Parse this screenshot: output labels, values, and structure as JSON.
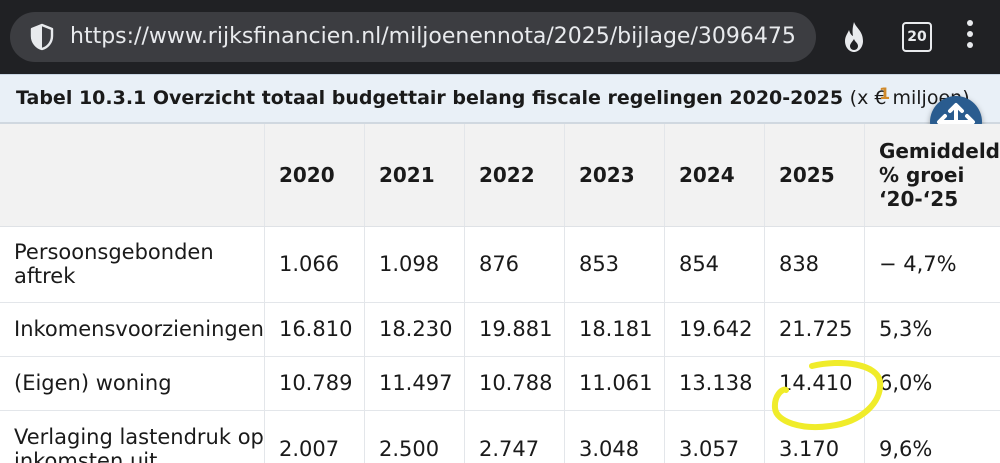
{
  "browser": {
    "url": "https://www.rijksfinancien.nl/miljoenennota/2025/bijlage/3096475",
    "tab_count": "20",
    "icons": [
      "shield-icon",
      "fire-icon",
      "more-vert-icon"
    ]
  },
  "table": {
    "caption": "Tabel 10.3.1 Overzicht totaal budgettair belang fiscale regelingen 2020-2025",
    "caption_unit": "(x € miljoen)",
    "footnote": "1",
    "columns": [
      "2020",
      "2021",
      "2022",
      "2023",
      "2024",
      "2025"
    ],
    "growth_header": [
      "Gemiddeld",
      "% groei",
      "‘20-‘25"
    ],
    "rows": [
      {
        "label": [
          "Persoonsgebonden",
          "aftrek"
        ],
        "values": [
          "1.066",
          "1.098",
          "876",
          "853",
          "854",
          "838"
        ],
        "growth": "− 4,7%"
      },
      {
        "label": [
          "Inkomensvoorzieningen"
        ],
        "values": [
          "16.810",
          "18.230",
          "19.881",
          "18.181",
          "19.642",
          "21.725"
        ],
        "growth": "5,3%"
      },
      {
        "label": [
          "(Eigen) woning"
        ],
        "values": [
          "10.789",
          "11.497",
          "10.788",
          "11.061",
          "13.138",
          "14.410"
        ],
        "growth": "6,0%"
      },
      {
        "label": [
          "Verlaging lastendruk op",
          "inkomsten uit"
        ],
        "values": [
          "2.007",
          "2.500",
          "2.747",
          "3.048",
          "3.057",
          "3.170"
        ],
        "growth": "9,6%"
      }
    ]
  },
  "colors": {
    "chrome_bg": "#202124",
    "caption_bg": "#e9f0f7",
    "header_bg": "#f2f2f2",
    "button_bg": "#2a5c8f",
    "highlight": "#f0ec2a"
  }
}
